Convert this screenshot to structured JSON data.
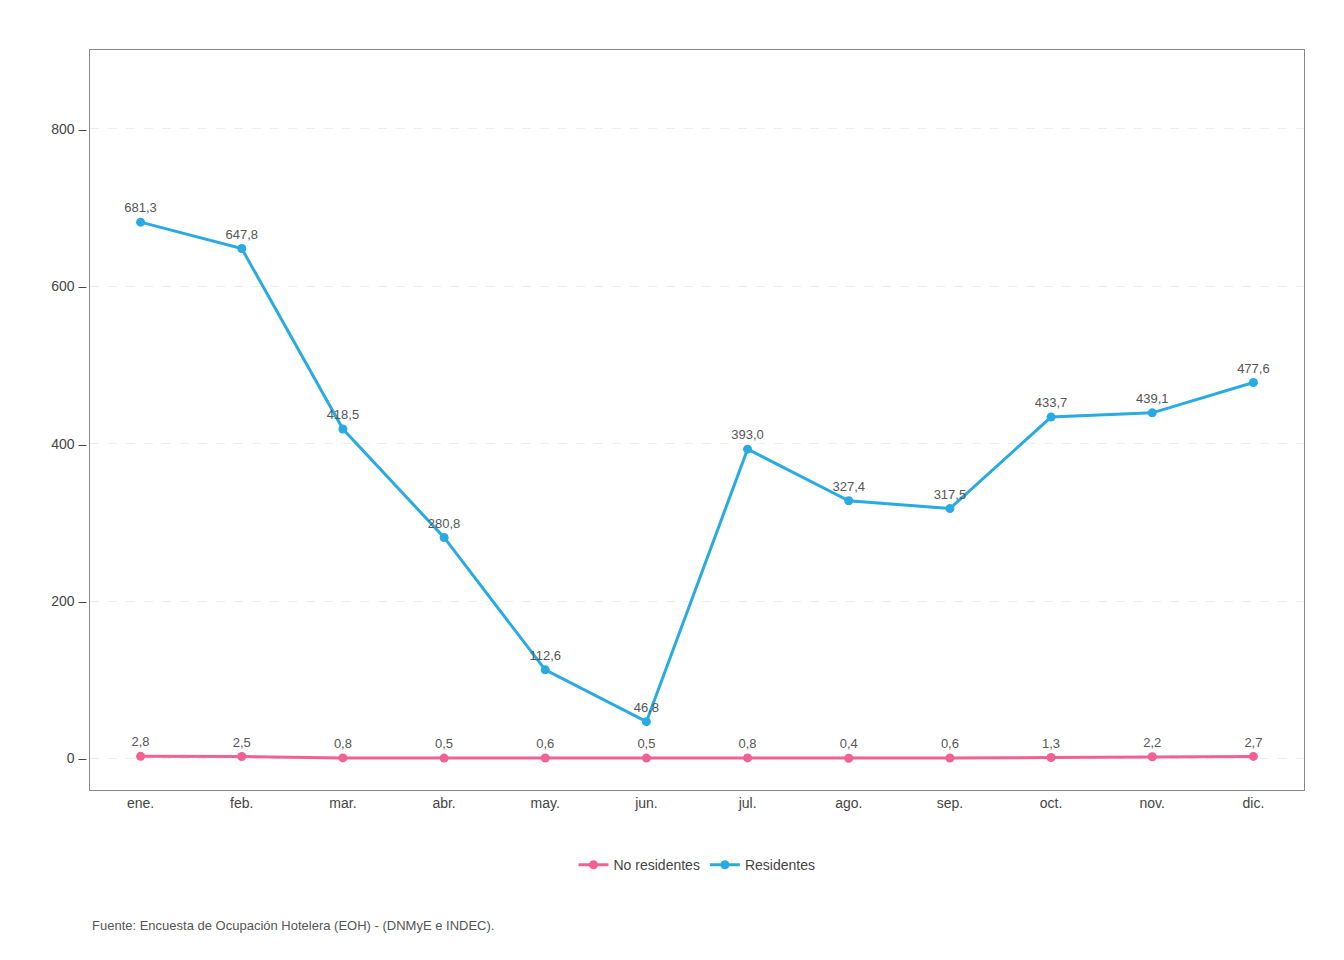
{
  "chart_data": {
    "type": "line",
    "categories": [
      "ene.",
      "feb.",
      "mar.",
      "abr.",
      "may.",
      "jun.",
      "jul.",
      "ago.",
      "sep.",
      "oct.",
      "nov.",
      "dic."
    ],
    "series": [
      {
        "name": "Residentes",
        "color": "#29ABE2",
        "marker": "circle",
        "values": [
          681.3,
          647.8,
          418.5,
          280.8,
          112.6,
          46.8,
          393.0,
          327.4,
          317.5,
          433.7,
          439.1,
          477.6
        ],
        "value_labels": [
          "681,3",
          "647,8",
          "418,5",
          "280,8",
          "112,6",
          "46,8",
          "393,0",
          "327,4",
          "317,5",
          "433,7",
          "439,1",
          "477,6"
        ]
      },
      {
        "name": "No residentes",
        "color": "#F06292",
        "marker": "circle",
        "values": [
          2.8,
          2.5,
          0.8,
          0.5,
          0.6,
          0.5,
          0.8,
          0.4,
          0.6,
          1.3,
          2.2,
          2.7
        ],
        "value_labels": [
          "2,8",
          "2,5",
          "0,8",
          "0,5",
          "0,6",
          "0,5",
          "0,8",
          "0,4",
          "0,6",
          "1,3",
          "2,2",
          "2,7"
        ]
      }
    ],
    "ylim": [
      -40,
      900
    ],
    "yticks": [
      {
        "value": 0,
        "label": "0 –"
      },
      {
        "value": 200,
        "label": "200 –"
      },
      {
        "value": 400,
        "label": "400 –"
      },
      {
        "value": 600,
        "label": "600 –"
      },
      {
        "value": 800,
        "label": "800 –"
      }
    ],
    "grid": true,
    "legend": "bottom",
    "data_labels": true,
    "annotations": [
      "Fuente: Encuesta de Ocupación Hotelera (EOH) - (DNMyE e INDEC)."
    ]
  }
}
